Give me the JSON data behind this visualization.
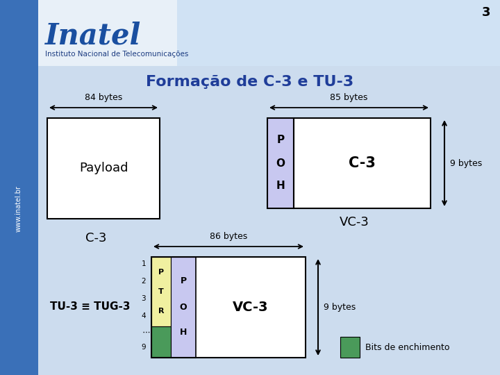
{
  "title": "Formação de C-3 e TU-3",
  "title_color": "#1f3d99",
  "bg_color": "#ccdcee",
  "page_number": "3",
  "inatel_text": "Inatel",
  "inatel_sub": "Instituto Nacional de Telecomunicações",
  "label_84": "84 bytes",
  "label_85": "85 bytes",
  "label_86": "86 bytes",
  "label_9bytes": "9 bytes",
  "label_payload": "Payload",
  "label_c3": "C-3",
  "label_vc3": "VC-3",
  "label_poh": [
    "P",
    "O",
    "H"
  ],
  "label_ptr": [
    "P",
    "T",
    "R"
  ],
  "label_tu3": "TU-3 ≡ TUG-3",
  "label_bits": "Bits de enchimento",
  "row_nums": [
    "1",
    "2",
    "3",
    "4",
    "9"
  ],
  "poh_color": "#c8c8f0",
  "ptr_color": "#f0f0a0",
  "fill_color": "#4a9a5a",
  "white": "#ffffff",
  "black": "#000000",
  "header_white": "#ffffff",
  "header_blue_light": "#b8cfea",
  "sidebar_blue": "#3a70b8",
  "inatel_blue": "#1a4fa0",
  "www_blue": "#1a5fa8"
}
